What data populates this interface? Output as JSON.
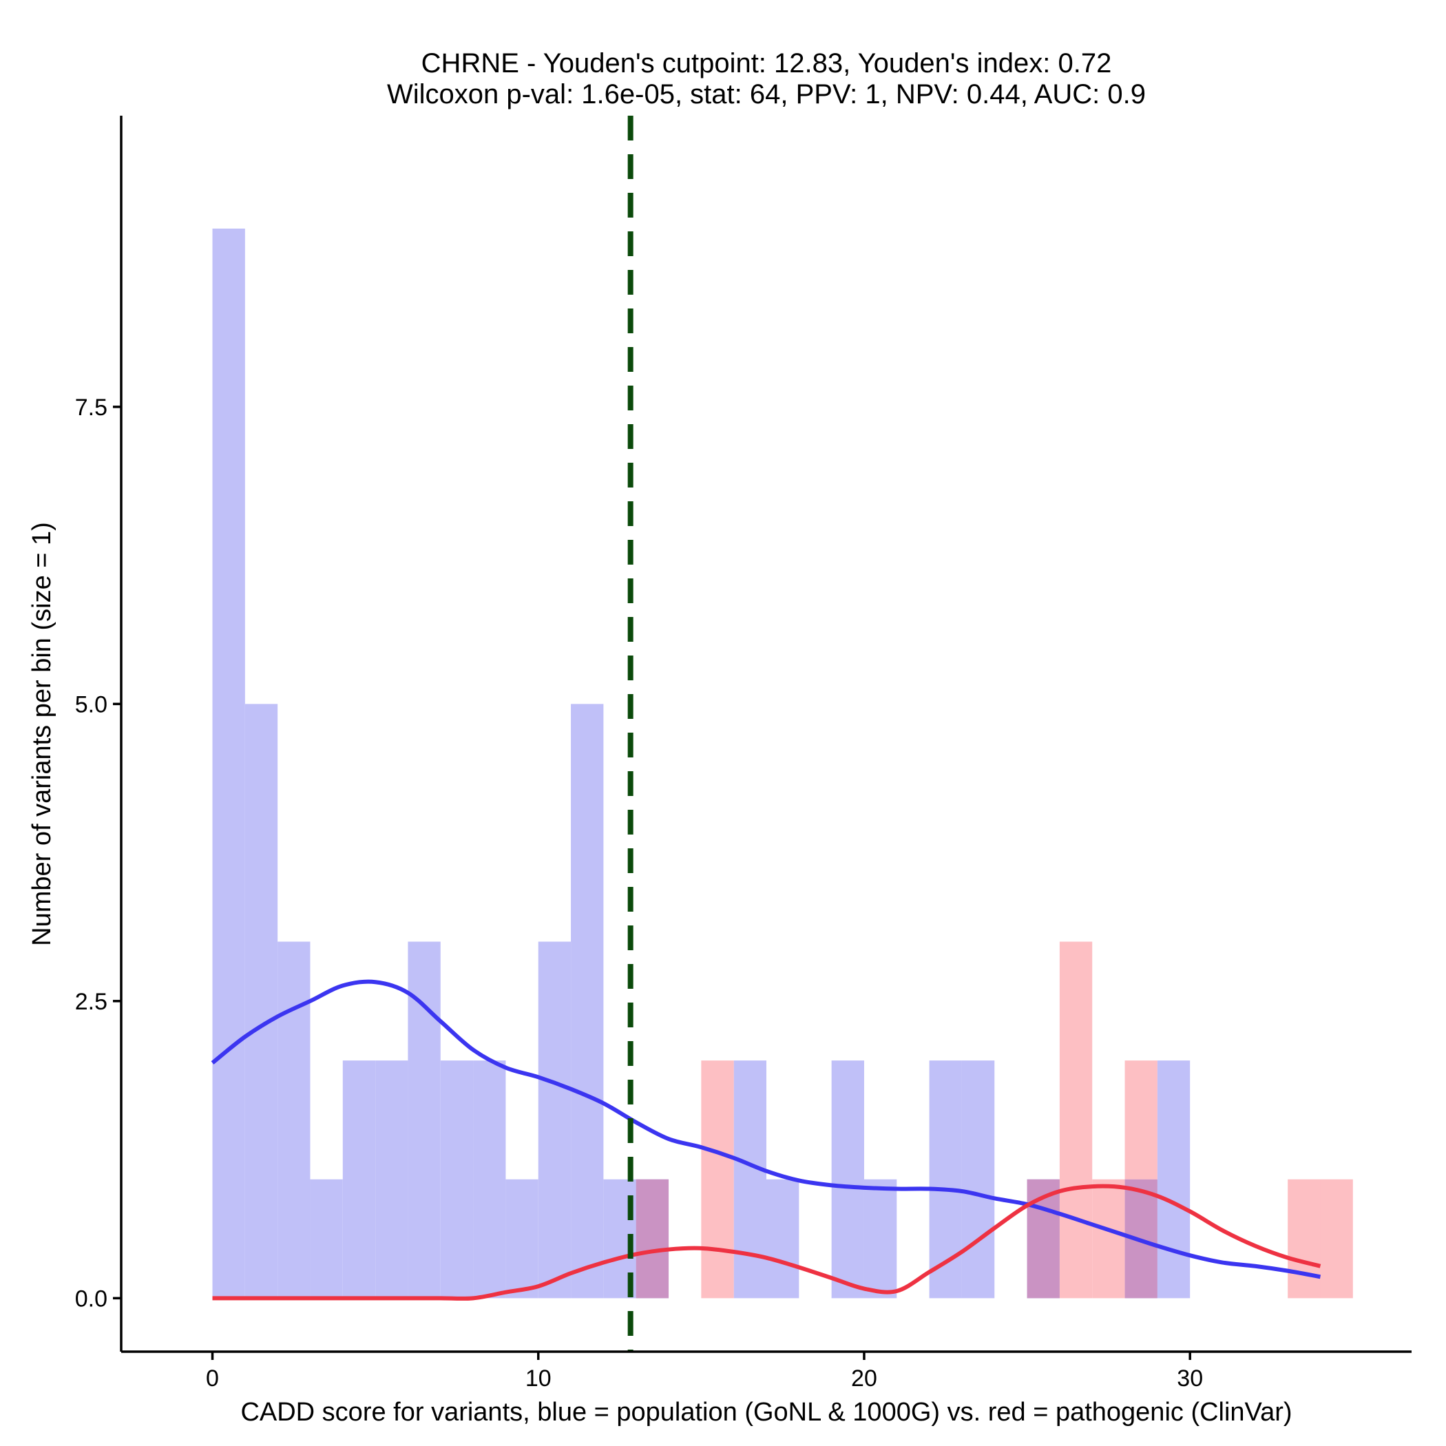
{
  "chart_data": {
    "type": "bar",
    "subtype": "overlaid histogram with density curves",
    "title": "CHRNE - Youden's cutpoint: 12.83, Youden's index: 0.72",
    "subtitle": "Wilcoxon p-val: 1.6e-05, stat: 64, PPV: 1, NPV: 0.44, AUC: 0.9",
    "xlabel": "CADD score for variants, blue = population (GoNL & 1000G) vs. red = pathogenic (ClinVar)",
    "ylabel": "Number of variants per bin (size = 1)",
    "xlim": [
      -2.8,
      36.8
    ],
    "ylim": [
      -0.45,
      9.95
    ],
    "x_ticks": [
      0,
      10,
      20,
      30
    ],
    "x_tick_labels": [
      "0",
      "10",
      "20",
      "30"
    ],
    "y_ticks": [
      0,
      2.5,
      5,
      7.5
    ],
    "y_tick_labels": [
      "0.0",
      "2.5",
      "5.0",
      "7.5"
    ],
    "bin_width": 1,
    "cutpoint": 12.83,
    "colors": {
      "population_bar": "#c0c0f8",
      "pathogenic_bar": "#fdbfc3",
      "overlap_bar": "#ca93c3",
      "population_line": "#3b35f0",
      "pathogenic_line": "#ee3242",
      "cutpoint_line": "#0b4a0b",
      "axis": "#000000"
    },
    "series": [
      {
        "name": "population (GoNL & 1000G)",
        "kind": "histogram",
        "bins": [
          {
            "x0": 0,
            "count": 9
          },
          {
            "x0": 1,
            "count": 5
          },
          {
            "x0": 2,
            "count": 3
          },
          {
            "x0": 3,
            "count": 1
          },
          {
            "x0": 4,
            "count": 2
          },
          {
            "x0": 5,
            "count": 2
          },
          {
            "x0": 6,
            "count": 3
          },
          {
            "x0": 7,
            "count": 2
          },
          {
            "x0": 8,
            "count": 2
          },
          {
            "x0": 9,
            "count": 1
          },
          {
            "x0": 10,
            "count": 3
          },
          {
            "x0": 11,
            "count": 5
          },
          {
            "x0": 12,
            "count": 1
          },
          {
            "x0": 13,
            "count": 1
          },
          {
            "x0": 16,
            "count": 2
          },
          {
            "x0": 17,
            "count": 1
          },
          {
            "x0": 19,
            "count": 2
          },
          {
            "x0": 20,
            "count": 1
          },
          {
            "x0": 22,
            "count": 2
          },
          {
            "x0": 23,
            "count": 2
          },
          {
            "x0": 25,
            "count": 1
          },
          {
            "x0": 28,
            "count": 1
          },
          {
            "x0": 29,
            "count": 2
          }
        ]
      },
      {
        "name": "pathogenic (ClinVar)",
        "kind": "histogram",
        "bins": [
          {
            "x0": 13,
            "count": 1
          },
          {
            "x0": 15,
            "count": 2
          },
          {
            "x0": 25,
            "count": 1
          },
          {
            "x0": 26,
            "count": 3
          },
          {
            "x0": 27,
            "count": 1
          },
          {
            "x0": 28,
            "count": 2
          },
          {
            "x0": 33,
            "count": 1
          },
          {
            "x0": 34,
            "count": 1
          }
        ]
      },
      {
        "name": "population density",
        "kind": "line",
        "x": [
          0,
          1,
          2,
          3,
          4,
          5,
          6,
          7,
          8,
          9,
          10,
          11,
          12,
          13,
          14,
          15,
          16,
          17,
          18,
          19,
          20,
          21,
          22,
          23,
          24,
          25,
          26,
          27,
          28,
          29,
          30,
          31,
          32,
          33,
          34
        ],
        "y": [
          1.98,
          2.2,
          2.37,
          2.5,
          2.63,
          2.66,
          2.57,
          2.33,
          2.09,
          1.94,
          1.86,
          1.76,
          1.64,
          1.48,
          1.34,
          1.27,
          1.18,
          1.07,
          0.99,
          0.95,
          0.93,
          0.92,
          0.92,
          0.9,
          0.84,
          0.79,
          0.71,
          0.62,
          0.53,
          0.44,
          0.36,
          0.3,
          0.27,
          0.23,
          0.18
        ]
      },
      {
        "name": "pathogenic density",
        "kind": "line",
        "x": [
          0,
          1,
          2,
          3,
          4,
          5,
          6,
          7,
          8,
          9,
          10,
          11,
          12,
          13,
          14,
          15,
          16,
          17,
          18,
          19,
          20,
          21,
          22,
          23,
          24,
          25,
          26,
          27,
          28,
          29,
          30,
          31,
          32,
          33,
          34
        ],
        "y": [
          0,
          0,
          0,
          0,
          0,
          0,
          0,
          0,
          0,
          0.05,
          0.1,
          0.21,
          0.3,
          0.37,
          0.41,
          0.42,
          0.39,
          0.34,
          0.26,
          0.17,
          0.08,
          0.06,
          0.22,
          0.39,
          0.59,
          0.78,
          0.9,
          0.94,
          0.93,
          0.86,
          0.73,
          0.57,
          0.44,
          0.34,
          0.27
        ]
      }
    ]
  }
}
